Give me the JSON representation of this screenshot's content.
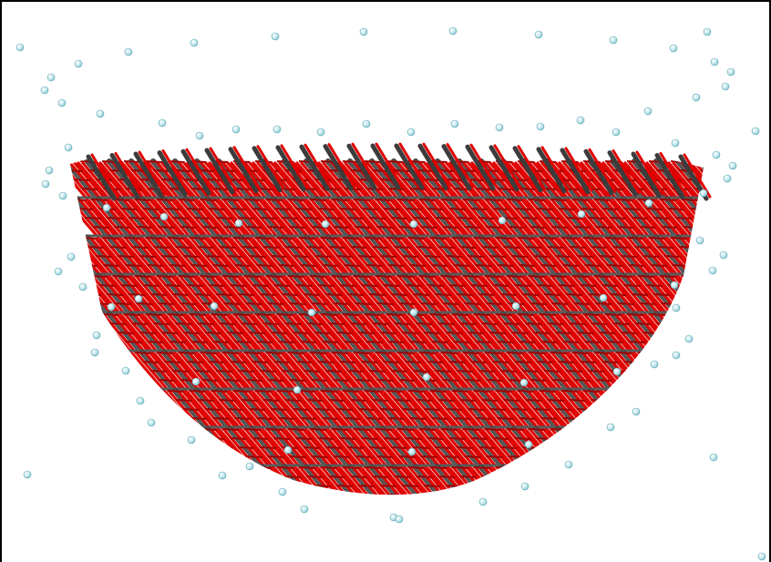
{
  "scene": {
    "type": "molecular-structure-render",
    "background_color": "#ffffff",
    "colors": {
      "oxygen": "#e00000",
      "oxygen_shade": "#a00000",
      "metal": "#5a5a5a",
      "metal_shade": "#3c3c3c",
      "hydrogen": "#bfe6ec",
      "hydrogen_outline": "#5fa7b3"
    }
  }
}
